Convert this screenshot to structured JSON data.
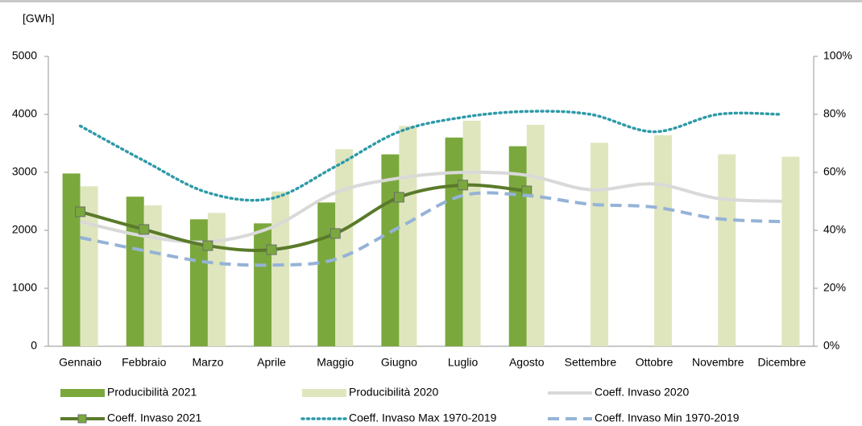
{
  "chart_data": {
    "type": "bar_line",
    "y_unit_label": "[GWh]",
    "categories": [
      "Gennaio",
      "Febbraio",
      "Marzo",
      "Aprile",
      "Maggio",
      "Giugno",
      "Luglio",
      "Agosto",
      "Settembre",
      "Ottobre",
      "Novembre",
      "Dicembre"
    ],
    "series": [
      {
        "name": "Producibilità 2021",
        "kind": "bar",
        "color": "#7aa83c",
        "values": [
          2980,
          2580,
          2190,
          2120,
          2480,
          3310,
          3600,
          3450,
          null,
          null,
          null,
          null
        ]
      },
      {
        "name": "Producibilità 2020",
        "kind": "bar",
        "color": "#dfe6bd",
        "values": [
          2760,
          2430,
          2300,
          2670,
          3400,
          3800,
          3890,
          3820,
          3510,
          3640,
          3310,
          3270
        ]
      },
      {
        "name": "Coeff. Invaso 2020",
        "kind": "line",
        "axis": "y2",
        "color": "#d9d9d9",
        "style": "solid",
        "values": [
          43,
          38,
          36,
          41,
          53,
          58,
          60,
          59,
          54,
          56,
          51,
          50
        ]
      },
      {
        "name": "Coeff. Invaso 2021",
        "kind": "line",
        "axis": "y2",
        "color": "#5a7a2a",
        "marker_color": "#7aa83c",
        "style": "solid",
        "values": [
          46.4,
          40.3,
          34.7,
          33.3,
          38.9,
          51.4,
          55.6,
          53.6,
          null,
          null,
          null,
          null
        ]
      },
      {
        "name": "Coeff. Invaso Max 1970-2019",
        "kind": "line",
        "axis": "y2",
        "color": "#2e9aa8",
        "style": "dotted",
        "values": [
          76,
          64,
          53,
          51,
          62,
          74,
          79,
          81,
          80,
          74,
          80,
          80
        ]
      },
      {
        "name": "Coeff. Invaso Min 1970-2019",
        "kind": "line",
        "axis": "y2",
        "color": "#95b3d7",
        "style": "dashed",
        "values": [
          37.5,
          33,
          29,
          28,
          30,
          41,
          52,
          52,
          49,
          48,
          44,
          43
        ]
      }
    ],
    "ylim": [
      0,
      5000
    ],
    "yticks": [
      0,
      1000,
      2000,
      3000,
      4000,
      5000
    ],
    "y2lim": [
      0,
      100
    ],
    "y2ticks": [
      {
        "value": 0,
        "label": "0%"
      },
      {
        "value": 20,
        "label": "20%"
      },
      {
        "value": 40,
        "label": "40%"
      },
      {
        "value": 60,
        "label": "60%"
      },
      {
        "value": 80,
        "label": "80%"
      },
      {
        "value": 100,
        "label": "100%"
      }
    ],
    "grid": false
  }
}
